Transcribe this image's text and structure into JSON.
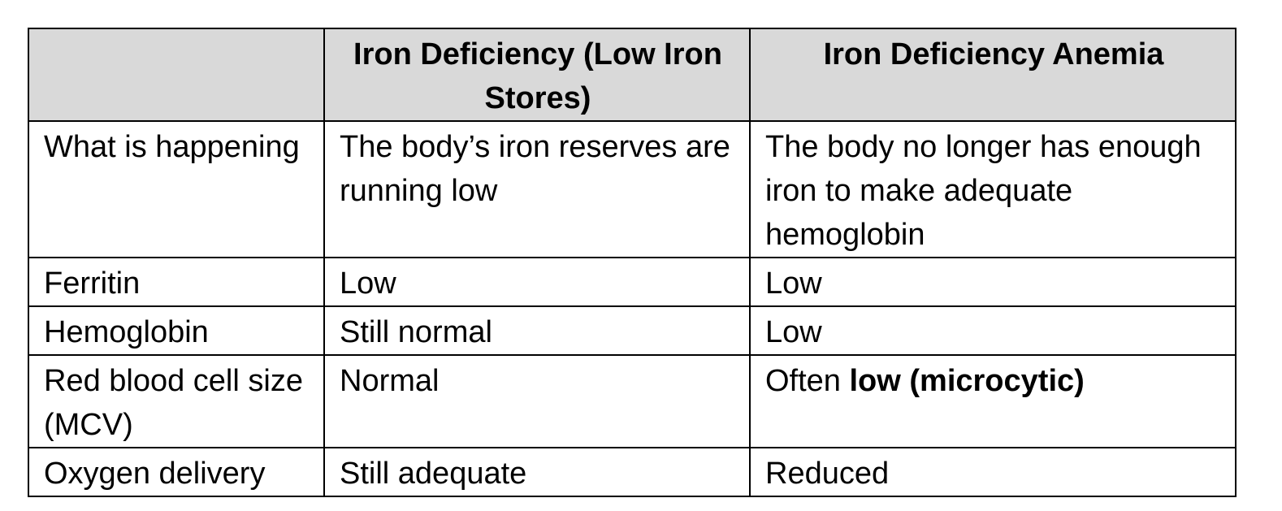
{
  "table": {
    "headers": [
      "",
      "Iron Deficiency (Low Iron Stores)",
      "Iron Deficiency Anemia"
    ],
    "rows": {
      "what": {
        "label": "What is happening",
        "deficiency": "The body’s iron reserves are running low",
        "anemia": "The body no longer has enough iron to make adequate hemoglobin"
      },
      "ferritin": {
        "label": "Ferritin",
        "deficiency": "Low",
        "anemia": "Low"
      },
      "hemoglobin": {
        "label": "Hemoglobin",
        "deficiency": "Still normal",
        "anemia": "Low"
      },
      "mcv": {
        "label": "Red blood cell size (MCV)",
        "deficiency": "Normal",
        "anemia_prefix": "Often ",
        "anemia_bold": "low (microcytic)"
      },
      "oxygen": {
        "label": "Oxygen delivery",
        "deficiency": "Still adequate",
        "anemia": "Reduced"
      }
    }
  }
}
